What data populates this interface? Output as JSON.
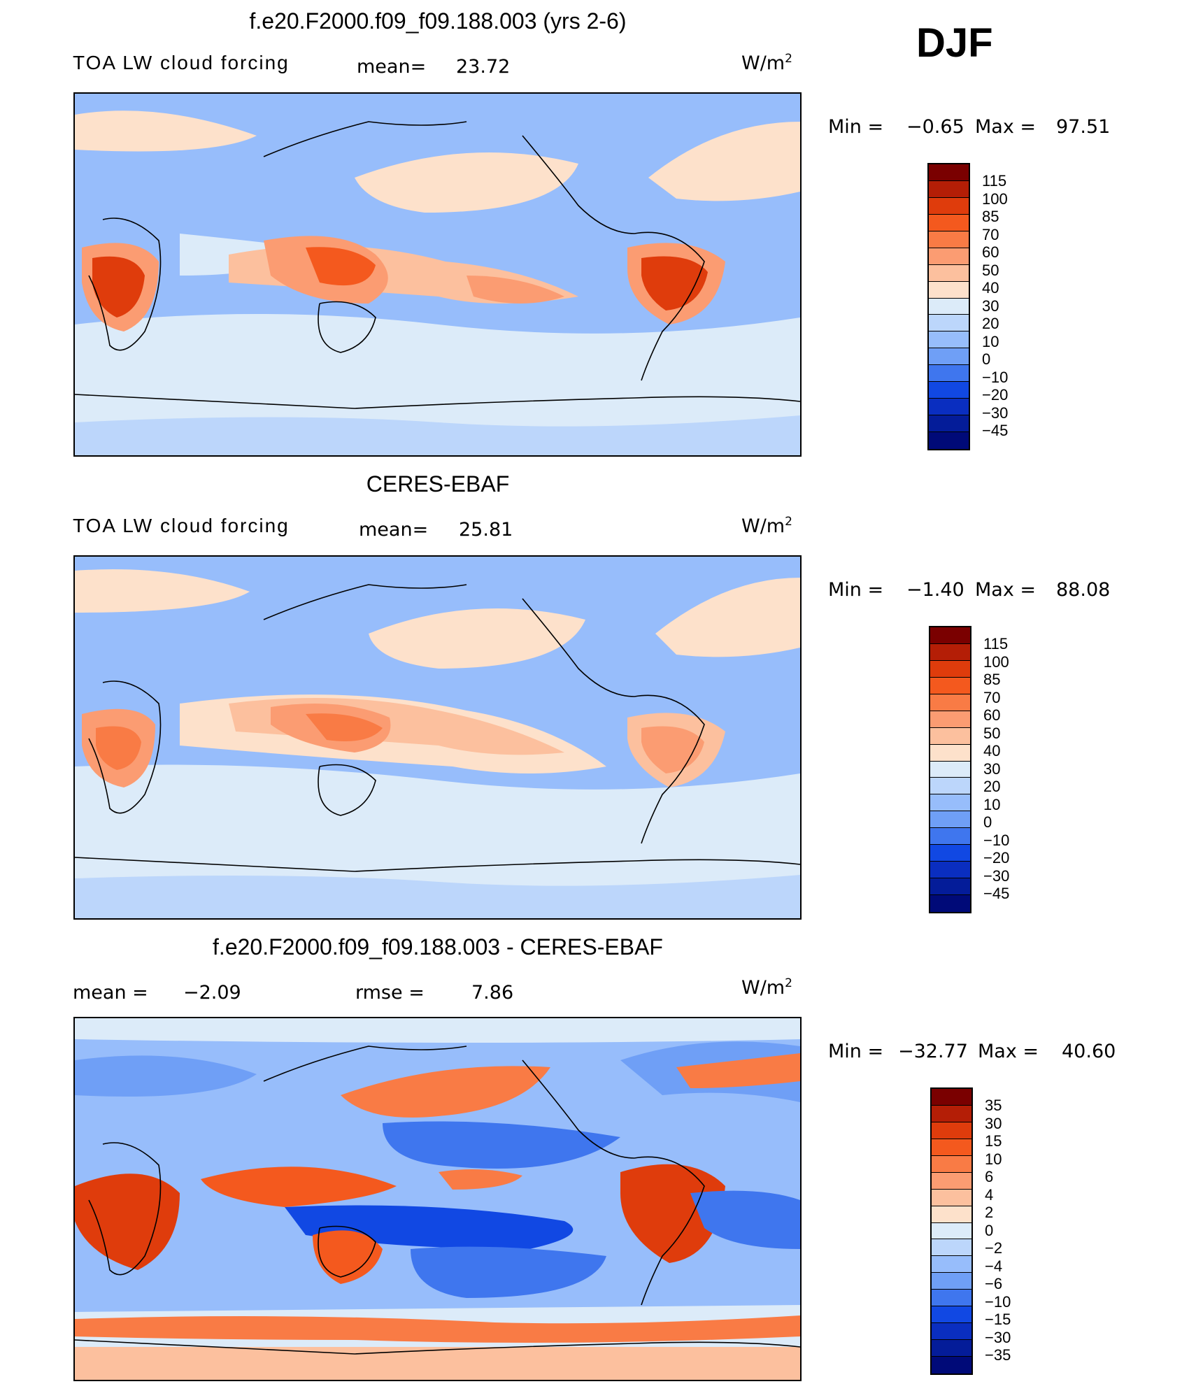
{
  "season": "DJF",
  "panels": [
    {
      "title": "f.e20.F2000.f09_f09.188.003 (yrs 2-6)",
      "left_label": "TOA LW cloud forcing",
      "mean_label": "mean=",
      "mean_value": "23.72",
      "units": "W/m",
      "units_sup": "2",
      "min_label": "Min =",
      "min_value": "−0.65",
      "max_label": "Max =",
      "max_value": "97.51",
      "colorbar_labels": [
        "115",
        "100",
        "85",
        "70",
        "60",
        "50",
        "40",
        "30",
        "20",
        "10",
        "0",
        "−10",
        "−20",
        "−30",
        "−45"
      ]
    },
    {
      "title": "CERES-EBAF",
      "left_label": "TOA LW cloud forcing",
      "mean_label": "mean=",
      "mean_value": "25.81",
      "units": "W/m",
      "units_sup": "2",
      "min_label": "Min =",
      "min_value": "−1.40",
      "max_label": "Max =",
      "max_value": "88.08",
      "colorbar_labels": [
        "115",
        "100",
        "85",
        "70",
        "60",
        "50",
        "40",
        "30",
        "20",
        "10",
        "0",
        "−10",
        "−20",
        "−30",
        "−45"
      ]
    },
    {
      "title": "f.e20.F2000.f09_f09.188.003 - CERES-EBAF",
      "mean_label": "mean =",
      "mean_value": "−2.09",
      "rmse_label": "rmse =",
      "rmse_value": "7.86",
      "units": "W/m",
      "units_sup": "2",
      "min_label": "Min =",
      "min_value": "−32.77",
      "max_label": "Max =",
      "max_value": "40.60",
      "colorbar_labels": [
        "35",
        "30",
        "15",
        "10",
        "6",
        "4",
        "2",
        "0",
        "−2",
        "−4",
        "−6",
        "−10",
        "−15",
        "−30",
        "−35"
      ]
    }
  ],
  "colors": {
    "field_scale": [
      "#7a0000",
      "#b41e06",
      "#df3c0c",
      "#f4591e",
      "#f97b45",
      "#fb9c72",
      "#fcc09e",
      "#fde1cb",
      "#dcebf9",
      "#bcd6fb",
      "#97bdfb",
      "#6f9ff6",
      "#3f76ee",
      "#1148e3",
      "#0a2ec0",
      "#041c99",
      "#000a78"
    ],
    "diff_scale": [
      "#7a0000",
      "#b41e06",
      "#df3c0c",
      "#f4591e",
      "#f97b45",
      "#fb9c72",
      "#fcc09e",
      "#fde1cb",
      "#dcebf9",
      "#bcd6fb",
      "#97bdfb",
      "#6f9ff6",
      "#3f76ee",
      "#1148e3",
      "#0a2ec0",
      "#041c99",
      "#000a78"
    ]
  }
}
